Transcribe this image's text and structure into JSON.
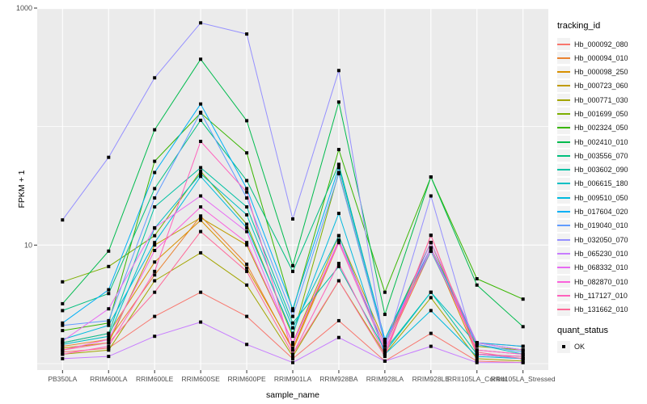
{
  "chart_data": {
    "type": "line",
    "title": "",
    "xlabel": "sample_name",
    "ylabel": "FPKM + 1",
    "yscale": "log10",
    "ylim": [
      1,
      1000
    ],
    "y_ticks": [
      {
        "value": 1000,
        "label": "1000"
      },
      {
        "value": 10,
        "label": "10"
      }
    ],
    "grid": {
      "h_major": [
        10,
        1000
      ],
      "h_minor": [
        1,
        100
      ],
      "v_major": "one-per-category"
    },
    "legend_title": "tracking_id",
    "legend_position": "right",
    "point_marker": {
      "shape": "square",
      "color": "#000000",
      "size": 4
    },
    "categories": [
      "PB350LA",
      "RRIM600LA",
      "RRIM600LE",
      "RRIM600SE",
      "RRIM600PE",
      "RRIM901LA",
      "RRIM928BA",
      "RRIM928LA",
      "RRIM928LE",
      "RRII105LA_Control",
      "RRII105LA_Stressed"
    ],
    "series": [
      {
        "name": "Hb_000092_080",
        "color": "#F8766D",
        "values": [
          1.25,
          1.35,
          2.5,
          4.0,
          2.5,
          1.1,
          2.3,
          1.05,
          1.8,
          1.05,
          1.02
        ]
      },
      {
        "name": "Hb_000094_010",
        "color": "#EA8331",
        "values": [
          1.4,
          1.6,
          5.6,
          17.6,
          6.9,
          1.3,
          10.5,
          1.3,
          8.9,
          1.5,
          1.4
        ]
      },
      {
        "name": "Hb_000098_250",
        "color": "#D89000",
        "values": [
          1.5,
          1.8,
          7.2,
          16.2,
          6.4,
          1.35,
          11,
          1.4,
          9.5,
          1.2,
          1.1
        ]
      },
      {
        "name": "Hb_000723_060",
        "color": "#C09B00",
        "values": [
          1.35,
          1.5,
          10,
          17,
          10,
          1.5,
          12,
          1.5,
          10.5,
          1.3,
          1.2
        ]
      },
      {
        "name": "Hb_000771_030",
        "color": "#A3A500",
        "values": [
          1.2,
          1.3,
          5.0,
          8.6,
          4.6,
          1.15,
          5.0,
          1.2,
          3.6,
          1.1,
          1.05
        ]
      },
      {
        "name": "Hb_001699_050",
        "color": "#7CAE00",
        "values": [
          4.9,
          6.6,
          12,
          42,
          15,
          1.7,
          41,
          1.5,
          8.9,
          1.4,
          1.3
        ]
      },
      {
        "name": "Hb_002324_050",
        "color": "#39B600",
        "values": [
          1.9,
          2.2,
          51,
          130,
          60,
          2.8,
          64,
          4.0,
          37.6,
          5.2,
          3.5
        ]
      },
      {
        "name": "Hb_002410_010",
        "color": "#00BB4E",
        "values": [
          3.2,
          8.9,
          94,
          370,
          112,
          6.7,
          161,
          2.6,
          37.6,
          4.6,
          2.05
        ]
      },
      {
        "name": "Hb_003556_070",
        "color": "#00BF7D",
        "values": [
          2.8,
          3.9,
          30,
          113,
          35,
          6.0,
          48,
          1.6,
          10.5,
          1.5,
          1.3
        ]
      },
      {
        "name": "Hb_003602_090",
        "color": "#00C1A3",
        "values": [
          1.5,
          1.8,
          21,
          45,
          21,
          2.2,
          6.6,
          1.3,
          4.0,
          1.2,
          1.15
        ]
      },
      {
        "name": "Hb_006615_180",
        "color": "#00BFC4",
        "values": [
          1.45,
          1.7,
          13.9,
          40,
          18,
          2.0,
          12,
          1.25,
          4.0,
          1.45,
          1.2
        ]
      },
      {
        "name": "Hb_009510_050",
        "color": "#00BADE",
        "values": [
          1.6,
          2.1,
          10.5,
          38,
          14,
          1.8,
          18.5,
          1.2,
          2.8,
          1.15,
          1.1
        ]
      },
      {
        "name": "Hb_017604_020",
        "color": "#00B0F6",
        "values": [
          2.2,
          4.2,
          41,
          155,
          30,
          2.9,
          45,
          1.6,
          9.5,
          1.5,
          1.4
        ]
      },
      {
        "name": "Hb_019040_010",
        "color": "#619CFF",
        "values": [
          2.1,
          2.3,
          25,
          132,
          25,
          2.5,
          40,
          1.5,
          8.9,
          1.45,
          1.25
        ]
      },
      {
        "name": "Hb_032050_070",
        "color": "#9590FF",
        "values": [
          16.3,
          55,
          258,
          750,
          604,
          16.6,
          297,
          1.3,
          26,
          1.2,
          1.1
        ]
      },
      {
        "name": "Hb_065230_010",
        "color": "#C77CFF",
        "values": [
          1.1,
          1.15,
          1.7,
          2.24,
          1.45,
          1.02,
          1.66,
          1.05,
          1.4,
          1.02,
          1.02
        ]
      },
      {
        "name": "Hb_068332_010",
        "color": "#E76BF3",
        "values": [
          1.55,
          2.9,
          14,
          26,
          13,
          1.45,
          11,
          1.4,
          10.5,
          1.5,
          1.3
        ]
      },
      {
        "name": "Hb_082870_010",
        "color": "#FA62DB",
        "values": [
          1.3,
          1.6,
          9,
          21,
          10.5,
          1.5,
          10.5,
          1.3,
          9.5,
          1.3,
          1.2
        ]
      },
      {
        "name": "Hb_117127_010",
        "color": "#FF62BC",
        "values": [
          1.2,
          1.4,
          6,
          75,
          28,
          1.2,
          7,
          1.2,
          12.1,
          1.2,
          1.15
        ]
      },
      {
        "name": "Hb_131662_010",
        "color": "#FF6A98",
        "values": [
          1.3,
          1.5,
          4.0,
          13,
          6,
          1.2,
          5,
          1.15,
          12.1,
          1.25,
          1.1
        ]
      }
    ],
    "secondary_legend": {
      "title": "quant_status",
      "items": [
        {
          "label": "OK",
          "marker": "square",
          "color": "#000000"
        }
      ]
    }
  },
  "colors": {
    "panel_bg": "#EBEBEB",
    "grid": "#FFFFFF",
    "point": "#000000",
    "axis_text": "#4D4D4D",
    "axis_title": "#000000",
    "tick": "#333333",
    "legend_key_bg": "#F2F2F2",
    "background": "#FFFFFF"
  }
}
